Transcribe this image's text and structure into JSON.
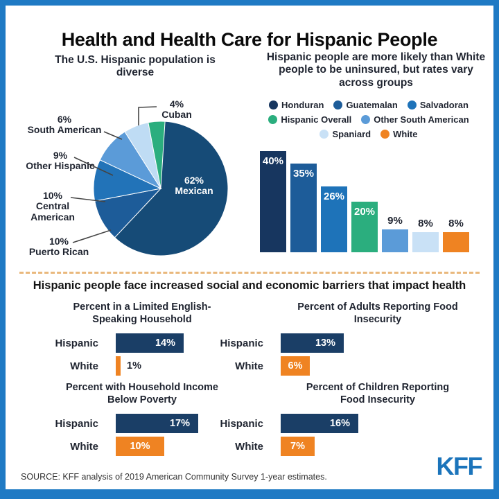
{
  "header": {
    "title": "Health and Health Care for Hispanic People"
  },
  "footer": {
    "source": "SOURCE: KFF analysis of 2019 American Community Survey 1-year estimates.",
    "logo": "KFF"
  },
  "colors": {
    "frame": "#1F7AC4",
    "navy": "#1A3E66",
    "orange": "#EF8322",
    "divider": "#E9B87C",
    "logo_blue": "#1B74BB",
    "text": "#1F2430"
  },
  "chart_data": [
    {
      "id": "population",
      "type": "pie",
      "title": "The U.S. Hispanic population is diverse",
      "start_angle": "top",
      "direction": "clockwise",
      "value_suffix": "%",
      "slices": [
        {
          "label": "Mexican",
          "value": 62,
          "color": "#164B77",
          "label_inside": true
        },
        {
          "label": "Puerto Rican",
          "value": 10,
          "color": "#1D5C99"
        },
        {
          "label": "Central American",
          "value": 10,
          "color": "#2273B8"
        },
        {
          "label": "Other Hispanic",
          "value": 9,
          "color": "#5B9BD8"
        },
        {
          "label": "South American",
          "value": 6,
          "color": "#BFDCF4"
        },
        {
          "label": "Cuban",
          "value": 4,
          "color": "#2BAE7E"
        }
      ]
    },
    {
      "id": "uninsured",
      "type": "bar",
      "title": "Hispanic people are more likely than White people to be uninsured, but rates vary across groups",
      "legend_position": "top",
      "grid": false,
      "ylim": [
        0,
        45
      ],
      "value_suffix": "%",
      "categories": [
        "Honduran",
        "Guatemalan",
        "Salvadoran",
        "Hispanic Overall",
        "Other South American",
        "Spaniard",
        "White"
      ],
      "values": [
        40,
        35,
        26,
        20,
        9,
        8,
        8
      ],
      "colors": [
        "#17365F",
        "#1D5C99",
        "#1E73B9",
        "#2BAE7E",
        "#5B9BD8",
        "#C9E1F6",
        "#EF8322"
      ]
    },
    {
      "id": "barriers",
      "type": "bar-group",
      "section_title": "Hispanic people face increased social and economic barriers that impact health",
      "value_suffix": "%",
      "group_colors": {
        "Hispanic": "#1A3E66",
        "White": "#EF8322"
      },
      "charts": [
        {
          "title_lines": [
            "Percent in a Limited English-",
            "Speaking Household"
          ],
          "rows": [
            {
              "group": "Hispanic",
              "value": 14
            },
            {
              "group": "White",
              "value": 1
            }
          ]
        },
        {
          "title_lines": [
            "Percent of Adults Reporting Food",
            "Insecurity"
          ],
          "rows": [
            {
              "group": "Hispanic",
              "value": 13
            },
            {
              "group": "White",
              "value": 6
            }
          ]
        },
        {
          "title_lines": [
            "Percent with Household Income",
            "Below Poverty"
          ],
          "rows": [
            {
              "group": "Hispanic",
              "value": 17
            },
            {
              "group": "White",
              "value": 10
            }
          ]
        },
        {
          "title_lines": [
            "Percent of Children Reporting",
            "Food Insecurity"
          ],
          "rows": [
            {
              "group": "Hispanic",
              "value": 16
            },
            {
              "group": "White",
              "value": 7
            }
          ]
        }
      ]
    }
  ]
}
